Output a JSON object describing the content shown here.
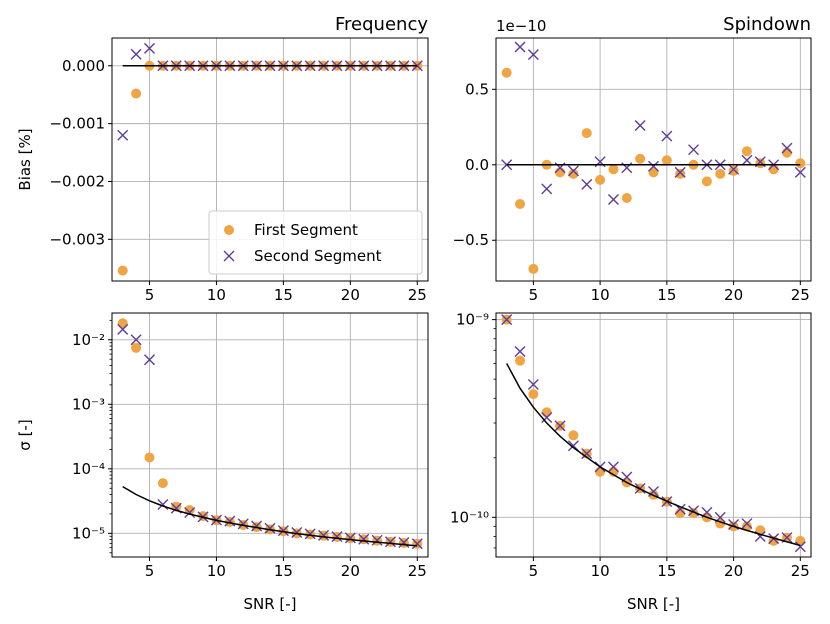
{
  "colors": {
    "first": "#f0a544",
    "second": "#5e3c99",
    "theory": "#000000",
    "grid": "#b0b0b0"
  },
  "legend": {
    "entries": [
      "First Segment",
      "Second Segment"
    ],
    "placement": "lower-right",
    "panel": 0
  },
  "chart_data": [
    {
      "type": "scatter",
      "title": "Frequency",
      "ylabel": "Bias [%]",
      "xlabel": "",
      "xlim": [
        2.2,
        25.8
      ],
      "xticks": [
        5,
        10,
        15,
        20,
        25
      ],
      "ylim": [
        -0.00372,
        0.00048
      ],
      "yscale": "linear",
      "yticks": [
        0.0,
        -0.001,
        -0.002,
        -0.003
      ],
      "ytick_labels": [
        "0.000",
        "−0.001",
        "−0.002",
        "−0.003"
      ],
      "offset_label": "",
      "grid": true,
      "series": [
        {
          "name": "First Segment",
          "marker": "circle",
          "x": [
            3,
            4,
            5,
            6,
            7,
            8,
            9,
            10,
            11,
            12,
            13,
            14,
            15,
            16,
            17,
            18,
            19,
            20,
            21,
            22,
            23,
            24,
            25
          ],
          "y": [
            -0.00354,
            -0.00048,
            0,
            0,
            0,
            0,
            0,
            0,
            0,
            0,
            0,
            0,
            0,
            0,
            0,
            0,
            0,
            0,
            0,
            0,
            0,
            0,
            0
          ]
        },
        {
          "name": "Second Segment",
          "marker": "x",
          "x": [
            3,
            4,
            5,
            6,
            7,
            8,
            9,
            10,
            11,
            12,
            13,
            14,
            15,
            16,
            17,
            18,
            19,
            20,
            21,
            22,
            23,
            24,
            25
          ],
          "y": [
            -0.0012,
            0.0002,
            0.0003,
            0,
            0,
            0,
            0,
            0,
            0,
            0,
            0,
            0,
            0,
            0,
            0,
            0,
            0,
            0,
            0,
            0,
            0,
            0,
            0
          ]
        },
        {
          "name": "",
          "marker": "line",
          "x": [
            3,
            25
          ],
          "y": [
            0,
            0
          ]
        }
      ]
    },
    {
      "type": "scatter",
      "title": "Spindown",
      "ylabel": "",
      "xlabel": "",
      "xlim": [
        2.2,
        25.8
      ],
      "xticks": [
        5,
        10,
        15,
        20,
        25
      ],
      "ylim": [
        -0.77,
        0.84
      ],
      "yscale": "linear",
      "yticks": [
        0.5,
        0.0,
        -0.5
      ],
      "ytick_labels": [
        "0.5",
        "0.0",
        "−0.5"
      ],
      "offset_label": "1e−10",
      "grid": true,
      "series": [
        {
          "name": "First Segment",
          "marker": "circle",
          "x": [
            3,
            4,
            5,
            6,
            7,
            8,
            9,
            10,
            11,
            12,
            13,
            14,
            15,
            16,
            17,
            18,
            19,
            20,
            21,
            22,
            23,
            24,
            25
          ],
          "y": [
            0.61,
            -0.26,
            -0.69,
            0.0,
            -0.05,
            -0.06,
            0.21,
            -0.1,
            -0.03,
            -0.22,
            0.04,
            -0.05,
            0.03,
            -0.06,
            0.0,
            -0.11,
            -0.06,
            -0.04,
            0.09,
            0.01,
            -0.03,
            0.08,
            0.01
          ]
        },
        {
          "name": "Second Segment",
          "marker": "x",
          "x": [
            3,
            4,
            5,
            6,
            7,
            8,
            9,
            10,
            11,
            12,
            13,
            14,
            15,
            16,
            17,
            18,
            19,
            20,
            21,
            22,
            23,
            24,
            25
          ],
          "y": [
            0.0,
            0.78,
            0.73,
            -0.16,
            -0.02,
            -0.04,
            -0.13,
            0.02,
            -0.23,
            -0.02,
            0.26,
            -0.01,
            0.19,
            -0.05,
            0.1,
            0.0,
            0.0,
            -0.03,
            0.03,
            0.02,
            0.0,
            0.11,
            -0.05
          ]
        },
        {
          "name": "",
          "marker": "line",
          "x": [
            3,
            25
          ],
          "y": [
            0,
            0
          ]
        }
      ]
    },
    {
      "type": "scatter",
      "title": "",
      "ylabel": "σ [-]",
      "xlabel": "SNR [-]",
      "xlim": [
        2.2,
        25.8
      ],
      "xticks": [
        5,
        10,
        15,
        20,
        25
      ],
      "ylim": [
        4.3e-06,
        0.026
      ],
      "yscale": "log",
      "yticks": [
        1e-05,
        0.0001,
        0.001,
        0.01
      ],
      "ytick_labels": [
        "10⁻⁵",
        "10⁻⁴",
        "10⁻³",
        "10⁻²"
      ],
      "offset_label": "",
      "grid": true,
      "series": [
        {
          "name": "First Segment",
          "marker": "circle",
          "x": [
            3,
            4,
            5,
            6,
            7,
            8,
            9,
            10,
            11,
            12,
            13,
            14,
            15,
            16,
            17,
            18,
            19,
            20,
            21,
            22,
            23,
            24,
            25
          ],
          "y": [
            0.018,
            0.0075,
            0.00015,
            6e-05,
            2.6e-05,
            2.3e-05,
            1.85e-05,
            1.6e-05,
            1.5e-05,
            1.35e-05,
            1.25e-05,
            1.15e-05,
            1.08e-05,
            1e-05,
            9.6e-06,
            9.2e-06,
            8.8e-06,
            8.4e-06,
            8.1e-06,
            7.7e-06,
            7.4e-06,
            7.1e-06,
            6.9e-06
          ]
        },
        {
          "name": "Second Segment",
          "marker": "x",
          "x": [
            3,
            4,
            5,
            6,
            7,
            8,
            9,
            10,
            11,
            12,
            13,
            14,
            15,
            16,
            17,
            18,
            19,
            20,
            21,
            22,
            23,
            24,
            25
          ],
          "y": [
            0.0145,
            0.01,
            0.0049,
            2.8e-05,
            2.45e-05,
            2.1e-05,
            1.8e-05,
            1.6e-05,
            1.55e-05,
            1.4e-05,
            1.3e-05,
            1.2e-05,
            1.1e-05,
            1.03e-05,
            9.8e-06,
            9.3e-06,
            8.9e-06,
            8.5e-06,
            8.1e-06,
            7.8e-06,
            7.4e-06,
            7.2e-06,
            6.9e-06
          ]
        },
        {
          "name": "",
          "marker": "line",
          "x": [
            3,
            4,
            5,
            6,
            7,
            8,
            10,
            12,
            14,
            16,
            18,
            20,
            22,
            25
          ],
          "y": [
            5.3e-05,
            4e-05,
            3.2e-05,
            2.65e-05,
            2.27e-05,
            1.99e-05,
            1.59e-05,
            1.33e-05,
            1.14e-05,
            9.9e-06,
            8.8e-06,
            8e-06,
            7.3e-06,
            6.4e-06
          ]
        }
      ]
    },
    {
      "type": "scatter",
      "title": "",
      "ylabel": "",
      "xlabel": "SNR [-]",
      "xlim": [
        2.2,
        25.8
      ],
      "xticks": [
        5,
        10,
        15,
        20,
        25
      ],
      "ylim": [
        6.3e-11,
        1.08e-09
      ],
      "yscale": "log",
      "yticks": [
        1e-10,
        1e-09
      ],
      "ytick_labels": [
        "10⁻¹⁰",
        "10⁻⁹"
      ],
      "offset_label": "",
      "grid": true,
      "series": [
        {
          "name": "First Segment",
          "marker": "circle",
          "x": [
            3,
            4,
            5,
            6,
            7,
            8,
            9,
            10,
            11,
            12,
            13,
            14,
            15,
            16,
            17,
            18,
            19,
            20,
            21,
            22,
            23,
            24,
            25
          ],
          "y": [
            1e-09,
            6.2e-10,
            4.2e-10,
            3.4e-10,
            2.9e-10,
            2.6e-10,
            2.1e-10,
            1.7e-10,
            1.7e-10,
            1.5e-10,
            1.4e-10,
            1.3e-10,
            1.2e-10,
            1.05e-10,
            1.05e-10,
            1e-10,
            9.3e-11,
            9e-11,
            9e-11,
            8.6e-11,
            7.6e-11,
            7.9e-11,
            7.6e-11
          ]
        },
        {
          "name": "Second Segment",
          "marker": "x",
          "x": [
            3,
            4,
            5,
            6,
            7,
            8,
            9,
            10,
            11,
            12,
            13,
            14,
            15,
            16,
            17,
            18,
            19,
            20,
            21,
            22,
            23,
            24,
            25
          ],
          "y": [
            1e-09,
            6.9e-10,
            4.7e-10,
            3.2e-10,
            2.9e-10,
            2.3e-10,
            2.1e-10,
            1.8e-10,
            1.8e-10,
            1.6e-10,
            1.4e-10,
            1.35e-10,
            1.2e-10,
            1.1e-10,
            1.08e-10,
            1.06e-10,
            1e-10,
            9.2e-11,
            9.3e-11,
            8e-11,
            7.8e-11,
            7.9e-11,
            7.1e-11
          ]
        },
        {
          "name": "",
          "marker": "line",
          "x": [
            3,
            4,
            5,
            6,
            7,
            8,
            10,
            12,
            14,
            16,
            18,
            20,
            22,
            25
          ],
          "y": [
            6e-10,
            4.5e-10,
            3.6e-10,
            3e-10,
            2.57e-10,
            2.25e-10,
            1.8e-10,
            1.5e-10,
            1.29e-10,
            1.13e-10,
            1e-10,
            9e-11,
            8.2e-11,
            7.2e-11
          ]
        }
      ]
    }
  ]
}
